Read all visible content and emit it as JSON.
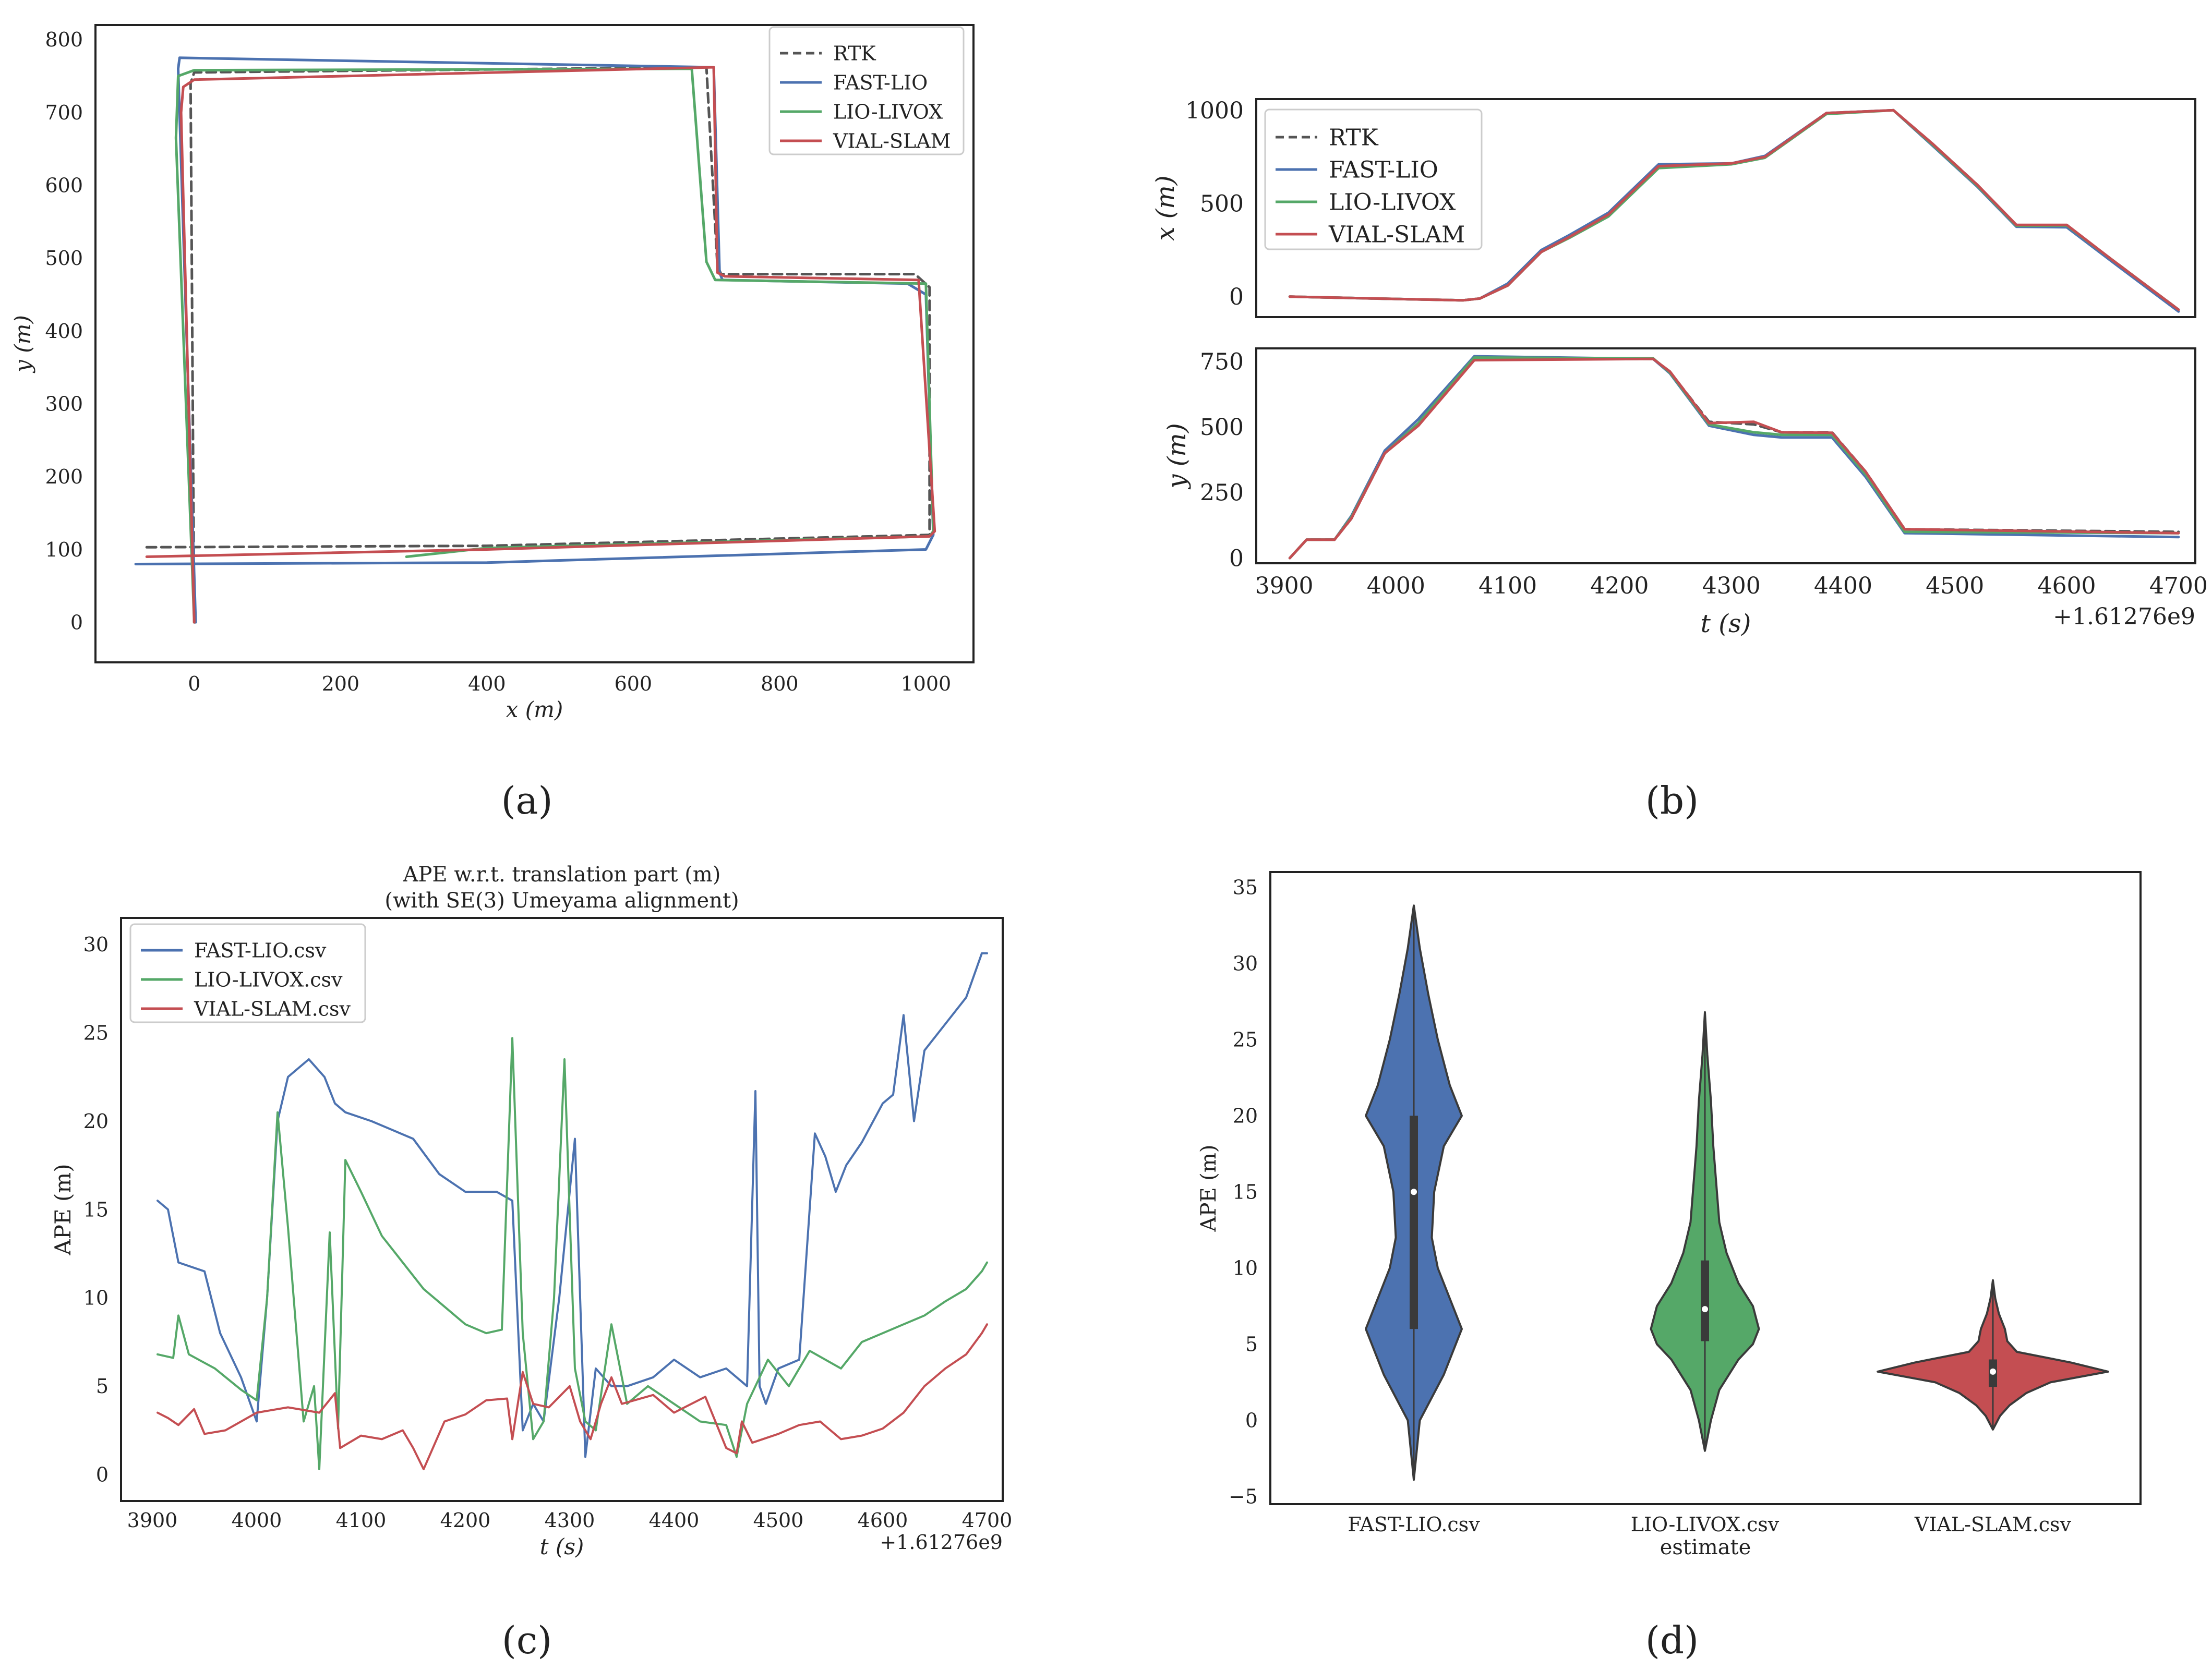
{
  "colors": {
    "rtk": "#555555",
    "fast": "#4c72b0",
    "lio": "#55a868",
    "vial": "#c44e52",
    "axis": "#222222",
    "violin_fast": "#4c72b0",
    "violin_lio": "#55a868",
    "violin_vial": "#c44e52"
  },
  "captions": [
    "(a)",
    "(b)",
    "(c)",
    "(d)"
  ],
  "chart_data": [
    {
      "id": "a",
      "type": "line",
      "title": "",
      "xlabel": "x (m)",
      "ylabel": "y (m)",
      "xlim": [
        -135,
        1065
      ],
      "ylim": [
        -55,
        820
      ],
      "xticks": [
        0,
        200,
        400,
        600,
        800,
        1000
      ],
      "yticks": [
        0,
        100,
        200,
        300,
        400,
        500,
        600,
        700,
        800
      ],
      "legend": "top-right",
      "series": [
        {
          "name": "RTK",
          "style": "dashed",
          "color_key": "rtk",
          "x": [
            -65,
            400,
            1005,
            1005,
            985,
            720,
            715,
            700,
            0,
            -5,
            0
          ],
          "y": [
            103,
            105,
            120,
            460,
            478,
            478,
            490,
            762,
            755,
            740,
            0
          ]
        },
        {
          "name": "FAST-LIO",
          "style": "solid",
          "color_key": "fast",
          "x": [
            -80,
            400,
            1000,
            1010,
            1000,
            975,
            722,
            718,
            710,
            -20,
            -22,
            2
          ],
          "y": [
            80,
            82,
            100,
            120,
            450,
            465,
            470,
            480,
            762,
            775,
            760,
            0
          ]
        },
        {
          "name": "LIO-LIVOX",
          "style": "solid",
          "color_key": "lio",
          "x": [
            290,
            400,
            1005,
            1010,
            1000,
            712,
            700,
            680,
            0,
            -22,
            -25,
            0
          ],
          "y": [
            90,
            102,
            118,
            125,
            465,
            470,
            495,
            760,
            758,
            750,
            665,
            0
          ]
        },
        {
          "name": "VIAL-SLAM",
          "style": "solid",
          "color_key": "vial",
          "x": [
            -65,
            400,
            1005,
            1012,
            990,
            725,
            715,
            710,
            0,
            -15,
            -18,
            0
          ],
          "y": [
            90,
            100,
            118,
            125,
            470,
            475,
            480,
            762,
            745,
            735,
            700,
            0
          ]
        }
      ]
    },
    {
      "id": "b-top",
      "type": "line",
      "xlabel": "",
      "ylabel": "x (m)",
      "xlim": [
        3875,
        4715
      ],
      "ylim": [
        -110,
        1060
      ],
      "yticks": [
        0,
        500,
        1000
      ],
      "legend": "top-left",
      "series": [
        {
          "name": "RTK",
          "style": "dashed",
          "color_key": "rtk",
          "x": [
            3905,
            3980,
            4060,
            4075,
            4100,
            4130,
            4155,
            4190,
            4235,
            4300,
            4330,
            4385,
            4445,
            4480,
            4520,
            4555,
            4600,
            4640,
            4680,
            4700
          ],
          "y": [
            0,
            -10,
            -20,
            -10,
            60,
            240,
            320,
            440,
            700,
            715,
            750,
            985,
            1000,
            820,
            600,
            380,
            380,
            200,
            20,
            -70
          ]
        },
        {
          "name": "FAST-LIO",
          "style": "solid",
          "color_key": "fast",
          "x": [
            3905,
            3980,
            4060,
            4075,
            4100,
            4130,
            4155,
            4190,
            4235,
            4300,
            4330,
            4385,
            4445,
            4480,
            4520,
            4555,
            4600,
            4640,
            4680,
            4700
          ],
          "y": [
            0,
            -10,
            -20,
            -10,
            70,
            250,
            330,
            450,
            710,
            715,
            755,
            985,
            1000,
            810,
            590,
            375,
            372,
            190,
            10,
            -80
          ]
        },
        {
          "name": "LIO-LIVOX",
          "style": "solid",
          "color_key": "lio",
          "x": [
            3905,
            3980,
            4060,
            4075,
            4100,
            4130,
            4155,
            4190,
            4235,
            4300,
            4330,
            4385,
            4445,
            4480,
            4520,
            4555,
            4600,
            4640,
            4680,
            4700
          ],
          "y": [
            0,
            -10,
            -20,
            -10,
            60,
            240,
            315,
            430,
            690,
            710,
            745,
            980,
            1000,
            815,
            595,
            380,
            382,
            200,
            20,
            -70
          ]
        },
        {
          "name": "VIAL-SLAM",
          "style": "solid",
          "color_key": "vial",
          "x": [
            3905,
            3980,
            4060,
            4075,
            4100,
            4130,
            4155,
            4190,
            4235,
            4300,
            4330,
            4385,
            4445,
            4480,
            4520,
            4555,
            4600,
            4640,
            4680,
            4700
          ],
          "y": [
            0,
            -10,
            -20,
            -10,
            60,
            240,
            320,
            440,
            700,
            715,
            750,
            985,
            1000,
            820,
            600,
            385,
            385,
            200,
            20,
            -70
          ]
        }
      ]
    },
    {
      "id": "b-bottom",
      "type": "line",
      "xlabel": "t (s)",
      "ylabel": "y (m)",
      "xlim": [
        3875,
        4715
      ],
      "ylim": [
        -20,
        800
      ],
      "xticks": [
        3900,
        4000,
        4100,
        4200,
        4300,
        4400,
        4500,
        4600,
        4700
      ],
      "yticks": [
        0,
        250,
        500,
        750
      ],
      "offset_label": "+1.61276e9",
      "series": [
        {
          "name": "RTK",
          "style": "dashed",
          "color_key": "rtk",
          "x": [
            3905,
            3920,
            3945,
            3960,
            3990,
            4020,
            4070,
            4230,
            4245,
            4280,
            4320,
            4345,
            4390,
            4420,
            4455,
            4700
          ],
          "y": [
            0,
            70,
            70,
            150,
            400,
            510,
            760,
            760,
            710,
            520,
            510,
            480,
            480,
            330,
            110,
            100
          ]
        },
        {
          "name": "FAST-LIO",
          "style": "solid",
          "color_key": "fast",
          "x": [
            3905,
            3920,
            3945,
            3960,
            3990,
            4020,
            4070,
            4230,
            4245,
            4280,
            4320,
            4345,
            4390,
            4420,
            4455,
            4700
          ],
          "y": [
            0,
            70,
            70,
            160,
            410,
            530,
            770,
            760,
            705,
            505,
            470,
            460,
            460,
            310,
            95,
            80
          ]
        },
        {
          "name": "LIO-LIVOX",
          "style": "solid",
          "color_key": "lio",
          "x": [
            3905,
            3920,
            3945,
            3960,
            3990,
            4020,
            4070,
            4230,
            4245,
            4280,
            4320,
            4345,
            4390,
            4420,
            4455,
            4700
          ],
          "y": [
            0,
            70,
            70,
            155,
            400,
            515,
            765,
            762,
            708,
            510,
            480,
            470,
            470,
            320,
            100,
            95
          ]
        },
        {
          "name": "VIAL-SLAM",
          "style": "solid",
          "color_key": "vial",
          "x": [
            3905,
            3920,
            3945,
            3960,
            3990,
            4020,
            4070,
            4230,
            4245,
            4280,
            4320,
            4345,
            4390,
            4420,
            4455,
            4700
          ],
          "y": [
            0,
            70,
            70,
            150,
            400,
            505,
            755,
            760,
            712,
            515,
            520,
            480,
            478,
            330,
            110,
            95
          ]
        }
      ]
    },
    {
      "id": "c",
      "type": "line",
      "title": "APE w.r.t. translation part (m)",
      "subtitle": "(with SE(3) Umeyama alignment)",
      "xlabel": "t (s)",
      "ylabel": "APE (m)",
      "xlim": [
        3870,
        4715
      ],
      "ylim": [
        -1.5,
        31.5
      ],
      "xticks": [
        3900,
        4000,
        4100,
        4200,
        4300,
        4400,
        4500,
        4600,
        4700
      ],
      "yticks": [
        0,
        5,
        10,
        15,
        20,
        25,
        30
      ],
      "offset_label": "+1.61276e9",
      "legend": "top-left",
      "series": [
        {
          "name": "FAST-LIO.csv",
          "color_key": "fast",
          "x": [
            3905,
            3915,
            3925,
            3950,
            3965,
            3985,
            4000,
            4010,
            4020,
            4030,
            4050,
            4065,
            4075,
            4085,
            4110,
            4150,
            4175,
            4200,
            4230,
            4245,
            4255,
            4265,
            4275,
            4290,
            4305,
            4315,
            4325,
            4340,
            4355,
            4380,
            4400,
            4425,
            4450,
            4470,
            4478,
            4482,
            4488,
            4500,
            4520,
            4535,
            4545,
            4555,
            4565,
            4580,
            4600,
            4610,
            4620,
            4630,
            4640,
            4660,
            4680,
            4695,
            4700
          ],
          "y": [
            15.5,
            15,
            12,
            11.5,
            8,
            5.5,
            3,
            10,
            20,
            22.5,
            23.5,
            22.5,
            21,
            20.5,
            20,
            19,
            17,
            16,
            16,
            15.5,
            2.5,
            4,
            3,
            10,
            19,
            1,
            6,
            5,
            5,
            5.5,
            6.5,
            5.5,
            6,
            5,
            21.7,
            5,
            4,
            6,
            6.5,
            19.3,
            18,
            16,
            17.5,
            18.8,
            21,
            21.5,
            26,
            20,
            24,
            25.5,
            27,
            29.5,
            29.5
          ]
        },
        {
          "name": "LIO-LIVOX.csv",
          "color_key": "lio",
          "x": [
            3905,
            3920,
            3925,
            3935,
            3960,
            3985,
            4000,
            4010,
            4020,
            4030,
            4045,
            4055,
            4060,
            4070,
            4078,
            4085,
            4100,
            4120,
            4140,
            4160,
            4180,
            4200,
            4220,
            4235,
            4245,
            4255,
            4265,
            4275,
            4285,
            4295,
            4305,
            4315,
            4325,
            4340,
            4355,
            4375,
            4400,
            4425,
            4450,
            4460,
            4470,
            4490,
            4510,
            4530,
            4560,
            4580,
            4600,
            4620,
            4640,
            4660,
            4680,
            4695,
            4700
          ],
          "y": [
            6.8,
            6.6,
            9,
            6.8,
            6,
            4.8,
            4.2,
            10,
            20.5,
            14,
            3,
            5,
            0.3,
            13.7,
            2.6,
            17.8,
            16,
            13.5,
            12,
            10.5,
            9.5,
            8.5,
            8,
            8.2,
            24.7,
            8,
            2,
            3,
            10,
            23.5,
            6,
            3,
            2.5,
            8.5,
            4,
            5,
            4,
            3,
            2.8,
            1,
            4,
            6.5,
            5,
            7,
            6,
            7.5,
            8,
            8.5,
            9,
            9.8,
            10.5,
            11.5,
            12
          ]
        },
        {
          "name": "VIAL-SLAM.csv",
          "color_key": "vial",
          "x": [
            3905,
            3915,
            3925,
            3940,
            3950,
            3970,
            4000,
            4030,
            4060,
            4075,
            4080,
            4100,
            4120,
            4140,
            4150,
            4160,
            4180,
            4200,
            4220,
            4240,
            4245,
            4255,
            4265,
            4280,
            4300,
            4310,
            4320,
            4330,
            4340,
            4350,
            4380,
            4400,
            4430,
            4450,
            4460,
            4465,
            4475,
            4500,
            4520,
            4540,
            4550,
            4560,
            4580,
            4600,
            4620,
            4640,
            4660,
            4680,
            4695,
            4700
          ],
          "y": [
            3.5,
            3.2,
            2.8,
            3.7,
            2.3,
            2.5,
            3.5,
            3.8,
            3.5,
            4.6,
            1.5,
            2.2,
            2,
            2.5,
            1.5,
            0.3,
            3,
            3.4,
            4.2,
            4.3,
            2,
            5.8,
            4,
            3.8,
            5,
            3,
            2,
            4,
            5.5,
            4,
            4.5,
            3.5,
            4.4,
            1.5,
            1.2,
            3,
            1.8,
            2.3,
            2.8,
            3,
            2.5,
            2,
            2.2,
            2.6,
            3.5,
            5,
            6,
            6.8,
            8,
            8.5
          ]
        }
      ]
    },
    {
      "id": "d",
      "type": "violin",
      "xlabel": "estimate",
      "ylabel": "APE (m)",
      "ylim": [
        -5.5,
        36
      ],
      "yticks": [
        -5,
        0,
        5,
        10,
        15,
        20,
        25,
        30,
        35
      ],
      "categories": [
        "FAST-LIO.csv",
        "LIO-LIVOX.csv",
        "VIAL-SLAM.csv"
      ],
      "violins": [
        {
          "name": "FAST-LIO.csv",
          "color_key": "violin_fast",
          "median": 15,
          "q1": 6,
          "q3": 20,
          "min": -3.9,
          "max": 33.8,
          "density_y": [
            -3.9,
            0,
            3,
            6,
            8,
            10,
            12,
            15,
            18,
            20,
            22,
            25,
            28,
            31,
            33.8
          ],
          "density_w": [
            0,
            0.05,
            0.25,
            0.4,
            0.3,
            0.2,
            0.15,
            0.17,
            0.25,
            0.4,
            0.3,
            0.2,
            0.12,
            0.05,
            0
          ]
        },
        {
          "name": "LIO-LIVOX.csv",
          "color_key": "violin_lio",
          "median": 7.3,
          "q1": 5.2,
          "q3": 10.5,
          "min": -2,
          "max": 26.8,
          "density_y": [
            -2,
            0,
            2,
            4,
            5,
            6,
            7.5,
            9,
            11,
            13,
            15,
            18,
            21,
            24,
            26.8
          ],
          "density_w": [
            0,
            0.05,
            0.12,
            0.28,
            0.4,
            0.45,
            0.4,
            0.28,
            0.18,
            0.12,
            0.1,
            0.07,
            0.05,
            0.02,
            0
          ]
        },
        {
          "name": "VIAL-SLAM.csv",
          "color_key": "violin_vial",
          "median": 3.2,
          "q1": 2.2,
          "q3": 4,
          "min": -0.6,
          "max": 9.2,
          "density_y": [
            -0.6,
            0.3,
            1,
            1.8,
            2.5,
            3.2,
            3.8,
            4.5,
            5.2,
            6,
            7,
            8,
            9.2
          ],
          "density_w": [
            0,
            0.06,
            0.14,
            0.28,
            0.48,
            0.96,
            0.65,
            0.2,
            0.12,
            0.1,
            0.05,
            0.02,
            0
          ]
        }
      ]
    }
  ]
}
